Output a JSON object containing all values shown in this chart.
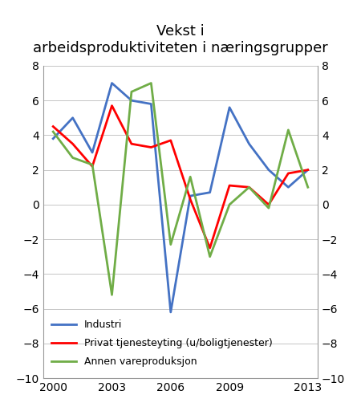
{
  "title": "Vekst i\narbeidsproduktiviteten i næringsgrupper",
  "years": [
    2000,
    2001,
    2002,
    2003,
    2004,
    2005,
    2006,
    2007,
    2008,
    2009,
    2010,
    2011,
    2012,
    2013
  ],
  "industri": [
    3.8,
    5.0,
    3.0,
    7.0,
    6.0,
    5.8,
    -6.2,
    0.5,
    0.7,
    5.6,
    3.5,
    2.0,
    1.0,
    2.0
  ],
  "privat": [
    4.5,
    3.5,
    2.2,
    5.7,
    3.5,
    3.3,
    3.7,
    0.3,
    -2.5,
    1.1,
    1.0,
    0.0,
    1.8,
    2.0
  ],
  "annen": [
    4.2,
    2.7,
    2.3,
    -5.2,
    6.5,
    7.0,
    -2.3,
    1.6,
    -3.0,
    0.0,
    1.0,
    -0.2,
    4.3,
    1.0
  ],
  "industri_color": "#4472C4",
  "privat_color": "#FF0000",
  "annen_color": "#70AD47",
  "ylim": [
    -10,
    8
  ],
  "yticks": [
    -10,
    -8,
    -6,
    -4,
    -2,
    0,
    2,
    4,
    6,
    8
  ],
  "xticks": [
    2000,
    2003,
    2006,
    2009,
    2013
  ],
  "legend_labels": [
    "Industri",
    "Privat tjenesteyting (u/boligtjenester)",
    "Annen vareproduksjon"
  ],
  "linewidth": 2.0,
  "bg_color": "#FFFFFF",
  "title_fontsize": 13,
  "tick_fontsize": 10,
  "legend_fontsize": 9
}
